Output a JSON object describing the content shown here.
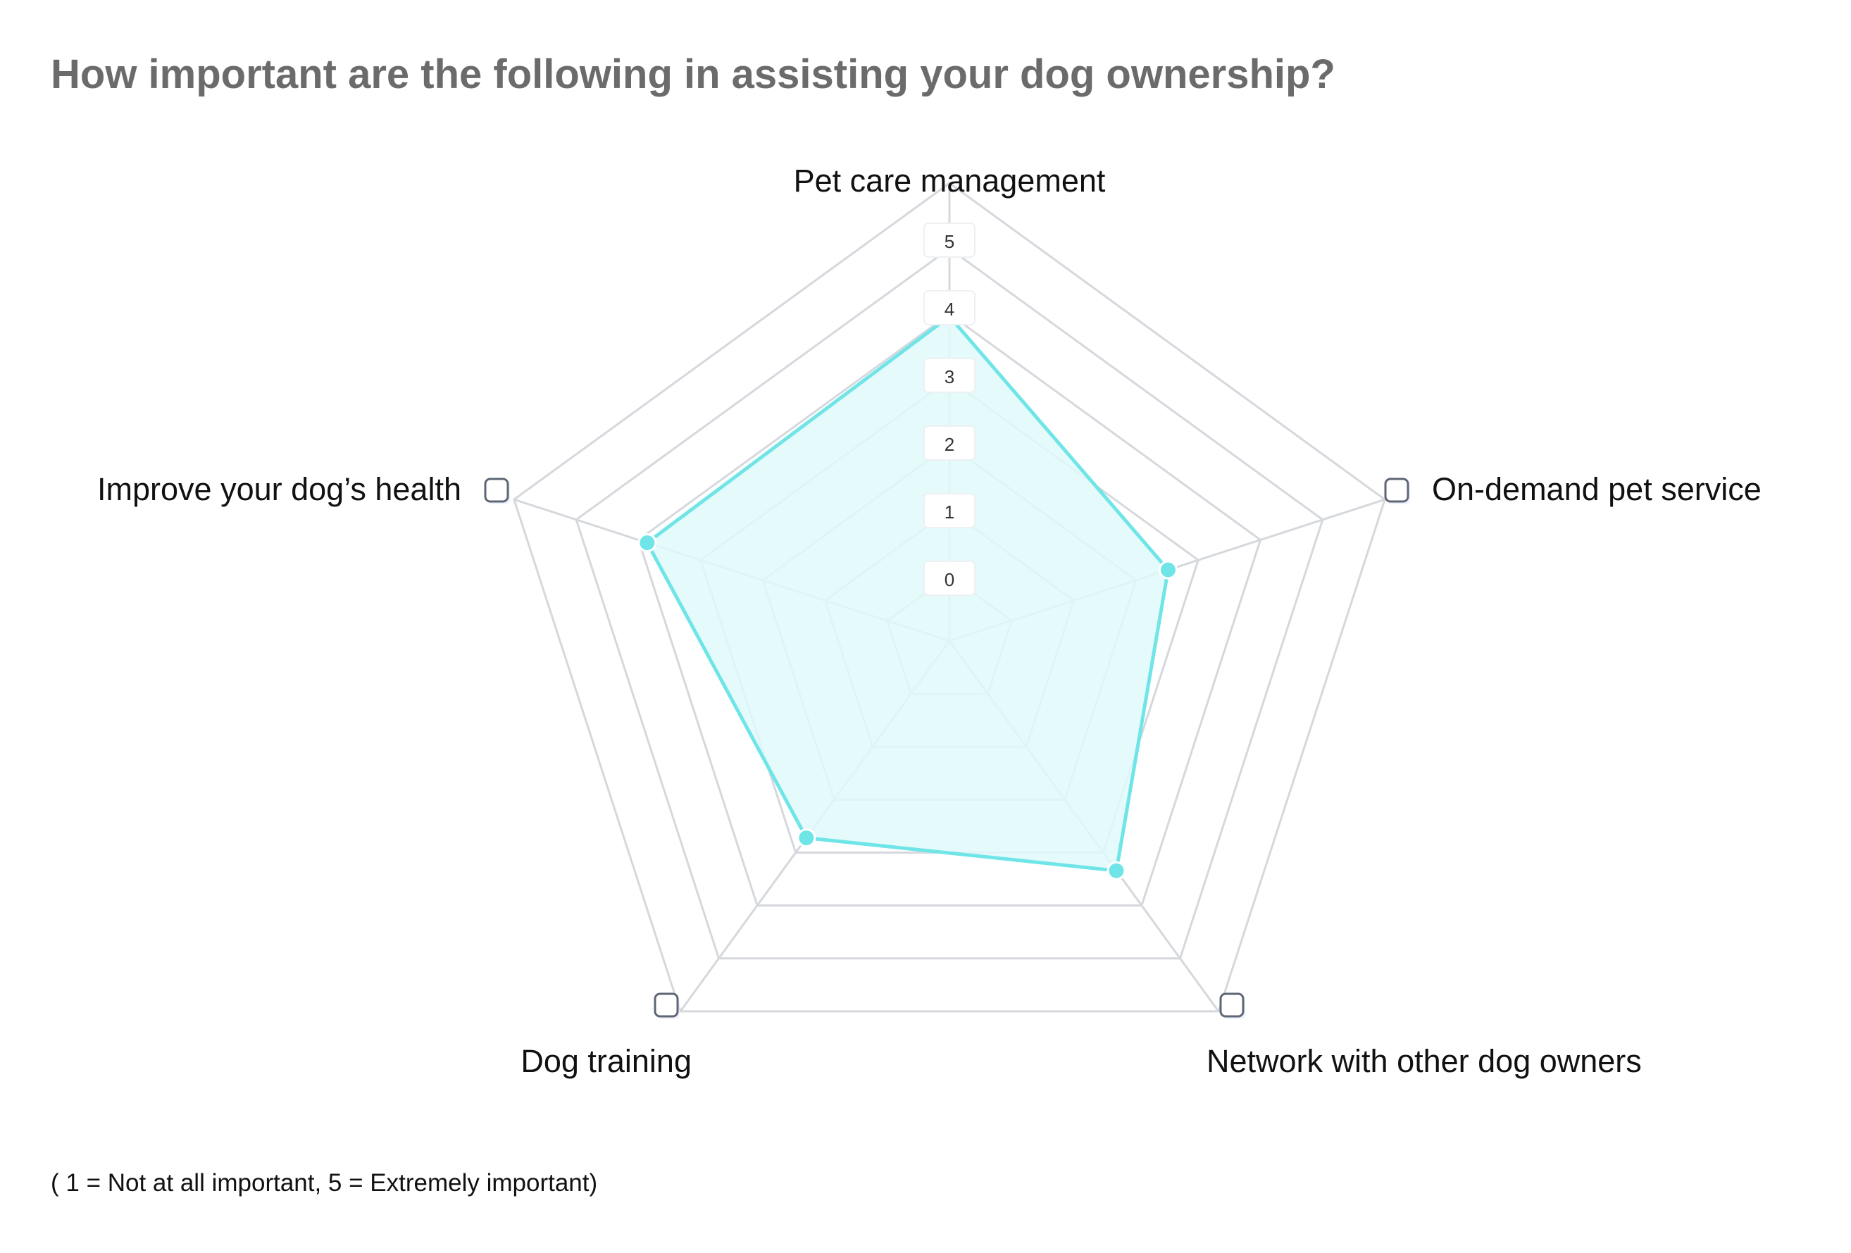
{
  "page": {
    "title": "How important are the following in assisting your dog ownership?",
    "footnote": "( 1 = Not at all important, 5 = Extremely important)"
  },
  "chart_data": {
    "type": "radar",
    "axes": [
      "Pet care management",
      "On-demand pet service",
      "Network with other dog owners",
      "Dog training",
      "Improve your dog’s health"
    ],
    "series": [
      {
        "values": [
          4.8,
          3.4,
          4.2,
          3.6,
          4.7
        ],
        "color": "#6fe5e8"
      }
    ],
    "range": [
      0,
      5
    ],
    "ticks": [
      0,
      1,
      2,
      3,
      4,
      5
    ],
    "tick_labels": [
      "0",
      "1",
      "2",
      "3",
      "4",
      "5"
    ],
    "grid_rings": 7,
    "grid": true,
    "legend_icon": "checkbox-icon",
    "colors": {
      "grid": "#d5d8dc",
      "fill": "#e0f9fa",
      "line": "#6fe5e8",
      "checkbox_border": "#5d6675"
    }
  }
}
